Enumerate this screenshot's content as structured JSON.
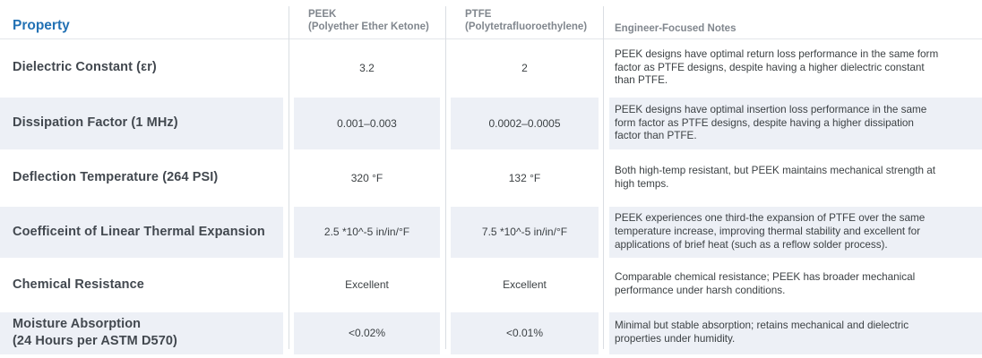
{
  "colors": {
    "accent_blue": "#2271b4",
    "header_gray": "#81878e",
    "stripe_bg": "#edf0f6",
    "divider": "#dadee3",
    "body_text": "#3c4144",
    "property_text": "#42484f"
  },
  "table": {
    "headers": {
      "property": "Property",
      "peek_name": "PEEK",
      "peek_sub": "(Polyether Ether Ketone)",
      "ptfe_name": "PTFE",
      "ptfe_sub": "(Polytetrafluoroethylene)",
      "notes": "Engineer-Focused Notes"
    },
    "rows": [
      {
        "property": "Dielectric Constant (εr)",
        "peek": "3.2",
        "ptfe": "2",
        "notes": "PEEK designs have optimal return loss performance in the same form factor as PTFE designs, despite having a higher dielectric constant than PTFE."
      },
      {
        "property": "Dissipation Factor (1 MHz)",
        "peek": "0.001–0.003",
        "ptfe": "0.0002–0.0005",
        "notes": "PEEK designs have optimal insertion loss performance in the same form factor as PTFE designs, despite having a higher dissipation factor than PTFE."
      },
      {
        "property": "Deflection Temperature (264 PSI)",
        "peek": "320 °F",
        "ptfe": "132 °F",
        "notes": "Both high-temp resistant, but PEEK maintains mechanical strength at high temps."
      },
      {
        "property": "Coefficeint of Linear Thermal Expansion",
        "peek": "2.5 *10^-5 in/in/°F",
        "ptfe": "7.5 *10^-5 in/in/°F",
        "notes": "PEEK experiences one third-the expansion of PTFE over the same temperature increase, improving thermal stability and excellent for applications of brief heat (such as a reflow solder process)."
      },
      {
        "property": "Chemical Resistance",
        "peek": "Excellent",
        "ptfe": "Excellent",
        "notes": "Comparable chemical resistance; PEEK has broader mechanical performance under harsh conditions."
      },
      {
        "property": "Moisture Absorption",
        "property_line2": "(24 Hours per ASTM D570)",
        "peek": "<0.02%",
        "ptfe": "<0.01%",
        "notes": "Minimal but stable absorption; retains mechanical and dielectric properties under humidity."
      }
    ]
  },
  "chart_data": {
    "type": "table",
    "title": "PEEK vs PTFE material property comparison",
    "columns": [
      "Property",
      "PEEK (Polyether Ether Ketone)",
      "PTFE (Polytetrafluoroethylene)",
      "Engineer-Focused Notes"
    ],
    "rows": [
      [
        "Dielectric Constant (εr)",
        "3.2",
        "2",
        "PEEK designs have optimal return loss performance in the same form factor as PTFE designs, despite having a higher dielectric constant than PTFE."
      ],
      [
        "Dissipation Factor (1 MHz)",
        "0.001–0.003",
        "0.0002–0.0005",
        "PEEK designs have optimal insertion loss performance in the same form factor as PTFE designs, despite having a higher dissipation factor than PTFE."
      ],
      [
        "Deflection Temperature (264 PSI)",
        "320 °F",
        "132 °F",
        "Both high-temp resistant, but PEEK maintains mechanical strength at high temps."
      ],
      [
        "Coefficeint of Linear Thermal Expansion",
        "2.5 *10^-5 in/in/°F",
        "7.5 *10^-5 in/in/°F",
        "PEEK experiences one third-the expansion of PTFE over the same temperature increase, improving thermal stability and excellent for applications of brief heat (such as a reflow solder process)."
      ],
      [
        "Chemical Resistance",
        "Excellent",
        "Excellent",
        "Comparable chemical resistance; PEEK has broader mechanical performance under harsh conditions."
      ],
      [
        "Moisture Absorption (24 Hours per ASTM D570)",
        "<0.02%",
        "<0.01%",
        "Minimal but stable absorption; retains mechanical and dielectric properties under humidity."
      ]
    ]
  }
}
